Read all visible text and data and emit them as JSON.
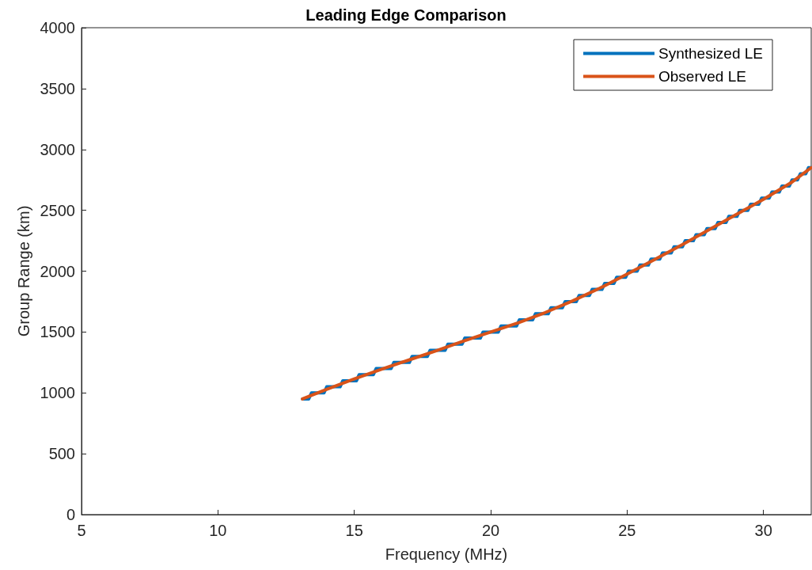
{
  "chart_data": {
    "type": "line",
    "title": "Leading Edge Comparison",
    "xlabel": "Frequency (MHz)",
    "ylabel": "Group Range (km)",
    "xlim": [
      5,
      31.75
    ],
    "xticks": [
      5,
      10,
      15,
      20,
      25,
      30
    ],
    "ylim": [
      0,
      4000
    ],
    "yticks": [
      0,
      500,
      1000,
      1500,
      2000,
      2500,
      3000,
      3500,
      4000
    ],
    "grid": false,
    "legend": "top right",
    "marker": "none",
    "line_style": "solid",
    "series": [
      {
        "name": "Synthesized LE",
        "color": "#0072bd",
        "x": [
          13.1,
          13.33,
          13.43,
          13.89,
          13.99,
          14.48,
          14.58,
          15.08,
          15.18,
          15.7,
          15.8,
          16.35,
          16.45,
          17.02,
          17.12,
          17.68,
          17.78,
          18.33,
          18.43,
          18.95,
          19.05,
          19.62,
          19.72,
          20.28,
          20.38,
          20.95,
          21.05,
          21.54,
          21.64,
          22.11,
          22.21,
          22.63,
          22.73,
          23.14,
          23.24,
          23.62,
          23.72,
          24.08,
          24.18,
          24.52,
          24.62,
          24.95,
          25.05,
          25.37,
          25.47,
          25.78,
          25.88,
          26.2,
          26.3,
          26.62,
          26.72,
          27.03,
          27.13,
          27.43,
          27.53,
          27.83,
          27.93,
          28.23,
          28.33,
          28.63,
          28.73,
          29.03,
          29.13,
          29.43,
          29.53,
          29.83,
          29.93,
          30.21,
          30.31,
          30.58,
          30.68,
          30.95,
          31.05,
          31.25,
          31.35,
          31.55,
          31.65,
          31.75
        ],
        "values": [
          950,
          950,
          1000,
          1000,
          1050,
          1050,
          1100,
          1100,
          1150,
          1150,
          1200,
          1200,
          1250,
          1250,
          1300,
          1300,
          1350,
          1350,
          1400,
          1400,
          1450,
          1450,
          1500,
          1500,
          1550,
          1550,
          1600,
          1600,
          1650,
          1650,
          1700,
          1700,
          1750,
          1750,
          1800,
          1800,
          1850,
          1850,
          1900,
          1900,
          1950,
          1950,
          2000,
          2000,
          2050,
          2050,
          2100,
          2100,
          2150,
          2150,
          2200,
          2200,
          2250,
          2250,
          2300,
          2300,
          2350,
          2350,
          2400,
          2400,
          2450,
          2450,
          2500,
          2500,
          2550,
          2550,
          2600,
          2600,
          2650,
          2650,
          2700,
          2700,
          2750,
          2750,
          2800,
          2800,
          2850,
          2850
        ]
      },
      {
        "name": "Observed LE",
        "color": "#d95319",
        "x": [
          13.1,
          14,
          15,
          16,
          17,
          18,
          19,
          20,
          21,
          22,
          23,
          24,
          25,
          26,
          27,
          28,
          29,
          30,
          31,
          31.75
        ],
        "values": [
          950,
          1030,
          1115,
          1195,
          1270,
          1345,
          1425,
          1500,
          1575,
          1660,
          1755,
          1860,
          1975,
          2095,
          2215,
          2340,
          2465,
          2590,
          2725,
          2850
        ]
      }
    ]
  }
}
